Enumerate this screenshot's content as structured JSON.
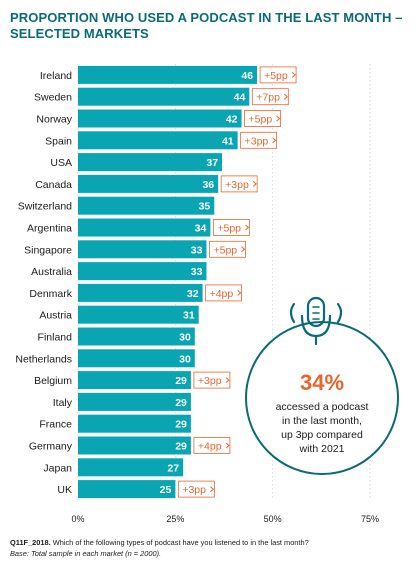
{
  "title_line1": "PROPORTION WHO USED A PODCAST IN THE LAST MONTH –",
  "title_line2": "SELECTED MARKETS",
  "chart_data": {
    "type": "bar",
    "orientation": "horizontal",
    "categories": [
      "Ireland",
      "Sweden",
      "Norway",
      "Spain",
      "USA",
      "Canada",
      "Switzerland",
      "Argentina",
      "Singapore",
      "Australia",
      "Denmark",
      "Austria",
      "Finland",
      "Netherlands",
      "Belgium",
      "Italy",
      "France",
      "Germany",
      "Japan",
      "UK"
    ],
    "values": [
      46,
      44,
      42,
      41,
      37,
      36,
      35,
      34,
      33,
      33,
      32,
      31,
      30,
      30,
      29,
      29,
      29,
      29,
      27,
      25
    ],
    "changes": [
      "+5pp",
      "+7pp",
      "+5pp",
      "+3pp",
      "",
      "+3pp",
      "",
      "+5pp",
      "+5pp",
      "",
      "+4pp",
      "",
      "",
      "",
      "+3pp",
      "",
      "",
      "+4pp",
      "",
      "+3pp"
    ],
    "xlim": [
      0,
      75
    ],
    "x_ticks": [
      "0%",
      "25%",
      "50%",
      "75%"
    ],
    "colors": {
      "bar": "#0aa5b2",
      "change": "#e8662e",
      "accent": "#0a6b77"
    },
    "callout": {
      "value": "34%",
      "lines": [
        "accessed a podcast",
        "in the last month,",
        "up 3pp compared",
        "with 2021"
      ],
      "icon": "microphone-icon"
    }
  },
  "footer": {
    "question_code": "Q11F_2018.",
    "question_text": " Which of the following types of podcast have you listened to in the last month?",
    "base": "Base: Total sample in each market (n = 2000)."
  }
}
